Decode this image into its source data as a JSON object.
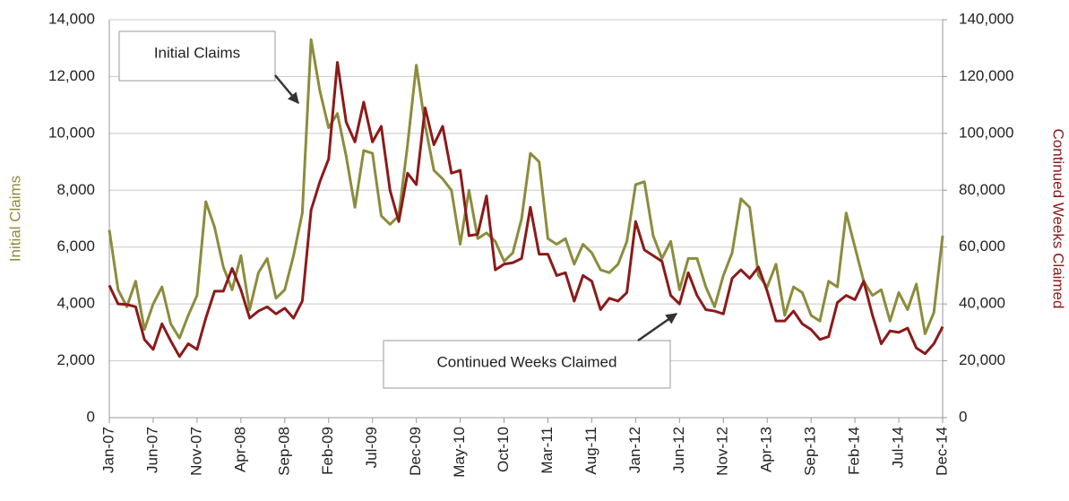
{
  "chart_data": {
    "type": "line",
    "categories": [
      "Jan-07",
      null,
      null,
      null,
      null,
      "Jun-07",
      null,
      null,
      null,
      null,
      "Nov-07",
      null,
      null,
      null,
      null,
      "Apr-08",
      null,
      null,
      null,
      null,
      "Sep-08",
      null,
      null,
      null,
      null,
      "Feb-09",
      null,
      null,
      null,
      null,
      "Jul-09",
      null,
      null,
      null,
      null,
      "Dec-09",
      null,
      null,
      null,
      null,
      "May-10",
      null,
      null,
      null,
      null,
      "Oct-10",
      null,
      null,
      null,
      null,
      "Mar-11",
      null,
      null,
      null,
      null,
      "Aug-11",
      null,
      null,
      null,
      null,
      "Jan-12",
      null,
      null,
      null,
      null,
      "Jun-12",
      null,
      null,
      null,
      null,
      "Nov-12",
      null,
      null,
      null,
      null,
      "Apr-13",
      null,
      null,
      null,
      null,
      "Sep-13",
      null,
      null,
      null,
      null,
      "Feb-14",
      null,
      null,
      null,
      null,
      "Jul-14",
      null,
      null,
      null,
      null,
      "Dec-14"
    ],
    "y_label": "Initial Claims",
    "y2_label": "Continued Weeks Claimed",
    "annotations": [
      "Initial Claims",
      "Continued Weeks Claimed"
    ],
    "grid": true,
    "ylim": [
      0,
      14000
    ],
    "yticks": [
      0,
      {
        "value": 2000,
        "label": "2,000"
      },
      {
        "value": 4000,
        "label": "4,000"
      },
      {
        "value": 6000,
        "label": "6,000"
      },
      {
        "value": 8000,
        "label": "8,000"
      },
      {
        "value": 10000,
        "label": "10,000"
      },
      {
        "value": 12000,
        "label": "12,000"
      },
      {
        "value": 14000,
        "label": "14,000"
      }
    ],
    "y2lim": [
      0,
      140000
    ],
    "y2ticks": [
      0,
      {
        "value": 20000,
        "label": "20,000"
      },
      {
        "value": 40000,
        "label": "40,000"
      },
      {
        "value": 60000,
        "label": "60,000"
      },
      {
        "value": 80000,
        "label": "80,000"
      },
      {
        "value": 100000,
        "label": "100,000"
      },
      {
        "value": 120000,
        "label": "120,000"
      },
      {
        "value": 140000,
        "label": "140,000"
      }
    ],
    "series": [
      {
        "name": "Initial Claims",
        "color": "#8c8c3c",
        "axis": "y",
        "values": [
          6600,
          4500,
          3900,
          4800,
          3100,
          4000,
          4600,
          3300,
          2800,
          3600,
          4300,
          7600,
          6700,
          5300,
          4500,
          5700,
          3800,
          5100,
          5600,
          4200,
          4500,
          5700,
          7200,
          13300,
          11500,
          10200,
          10700,
          9200,
          7400,
          9400,
          9300,
          7100,
          6800,
          7100,
          9600,
          12400,
          10300,
          8700,
          8400,
          8000,
          6100,
          8000,
          6300,
          6500,
          6200,
          5500,
          5800,
          7000,
          9300,
          9000,
          6300,
          6100,
          6300,
          5400,
          6100,
          5800,
          5200,
          5100,
          5400,
          6200,
          8200,
          8300,
          6400,
          5600,
          6200,
          4500,
          5600,
          5600,
          4600,
          3900,
          5000,
          5800,
          7700,
          7400,
          5000,
          4600,
          5400,
          3600,
          4600,
          4400,
          3600,
          3400,
          4800,
          4600,
          7200,
          6000,
          4800,
          4300,
          4500,
          3400,
          4400,
          3800,
          4700,
          2950,
          3700,
          6400
        ]
      },
      {
        "name": "Continued Weeks Claimed",
        "color": "#8b1a1a",
        "axis": "y2",
        "values": [
          46500,
          40000,
          39800,
          39000,
          27500,
          24000,
          33000,
          27000,
          21500,
          26000,
          24000,
          35000,
          44500,
          44500,
          52500,
          45000,
          35000,
          37500,
          39000,
          36500,
          38500,
          35000,
          41000,
          73000,
          83000,
          91000,
          125000,
          104000,
          97000,
          111000,
          97000,
          102500,
          80000,
          69000,
          86000,
          82000,
          109000,
          96000,
          102500,
          86000,
          87000,
          64000,
          64500,
          78000,
          52000,
          54000,
          54500,
          56000,
          74000,
          57500,
          57500,
          50000,
          51000,
          41000,
          50000,
          48000,
          38000,
          42000,
          41000,
          44000,
          69000,
          59000,
          57000,
          55000,
          43000,
          40000,
          51000,
          43000,
          38000,
          37500,
          36500,
          49000,
          52000,
          49000,
          53000,
          44500,
          34000,
          34000,
          37500,
          33000,
          31000,
          27500,
          28500,
          40500,
          43000,
          41500,
          48000,
          36000,
          26000,
          30500,
          30000,
          31500,
          24500,
          22500,
          26000,
          32000
        ]
      }
    ]
  }
}
